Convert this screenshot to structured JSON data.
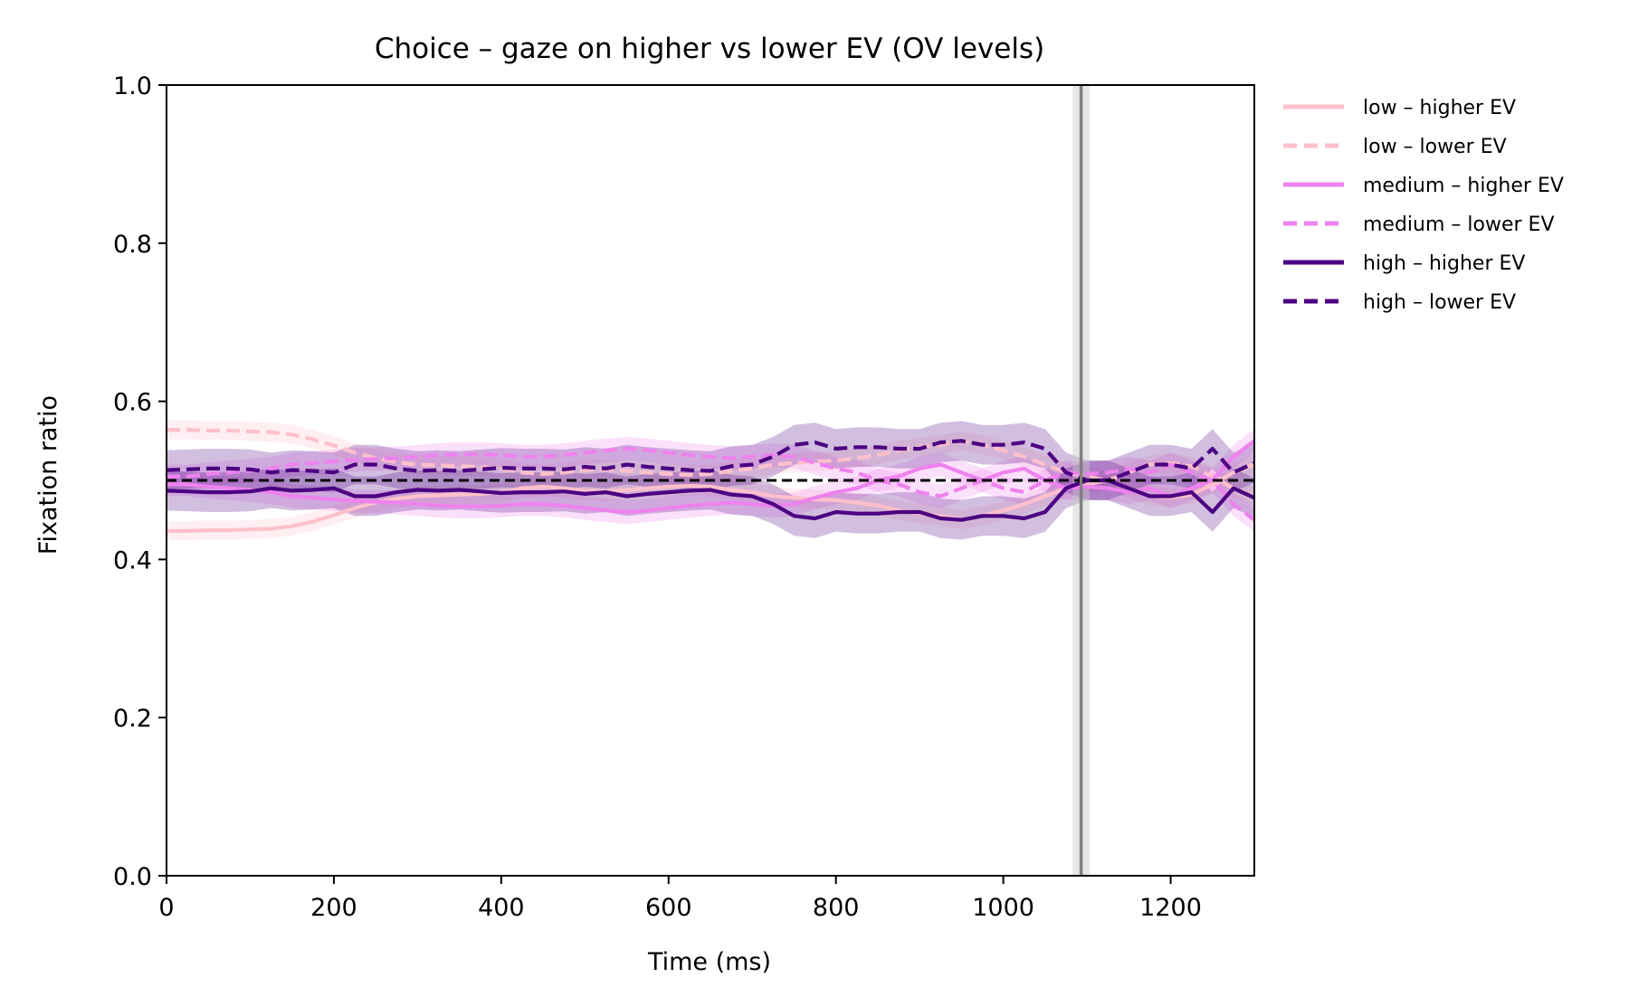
{
  "chart_data": {
    "type": "line",
    "title": "Choice – gaze on higher vs lower EV (OV levels)",
    "xlabel": "Time (ms)",
    "ylabel": "Fixation ratio",
    "xlim": [
      0,
      1300
    ],
    "ylim": [
      0,
      1
    ],
    "xticks": [
      0,
      200,
      400,
      600,
      800,
      1000,
      1200
    ],
    "xtick_labels": [
      "0",
      "200",
      "400",
      "600",
      "800",
      "1000",
      "1200"
    ],
    "yticks": [
      0,
      0.2,
      0.4,
      0.6,
      0.8,
      1.0
    ],
    "ytick_labels": [
      "0.0",
      "0.2",
      "0.4",
      "0.6",
      "0.8",
      "1.0"
    ],
    "grid": false,
    "legend_position": "outside-right-top",
    "reference_lines": {
      "horizontal_dashed_y": 0.5,
      "vertical_dashed_x": 0,
      "vertical_solid_x": 1093,
      "vertical_band": [
        1083,
        1103
      ]
    },
    "x": [
      0,
      25,
      50,
      75,
      100,
      125,
      150,
      175,
      200,
      225,
      250,
      275,
      300,
      325,
      350,
      375,
      400,
      425,
      450,
      475,
      500,
      525,
      550,
      575,
      600,
      625,
      650,
      675,
      700,
      725,
      750,
      775,
      800,
      825,
      850,
      875,
      900,
      925,
      950,
      975,
      1000,
      1025,
      1050,
      1075,
      1100,
      1125,
      1150,
      1175,
      1200,
      1225,
      1250,
      1275,
      1300
    ],
    "series": [
      {
        "name": "low – higher EV",
        "color": "#ffc0cb",
        "style": "solid",
        "values": [
          0.436,
          0.436,
          0.437,
          0.437,
          0.438,
          0.439,
          0.442,
          0.448,
          0.456,
          0.465,
          0.472,
          0.477,
          0.48,
          0.481,
          0.482,
          0.483,
          0.485,
          0.49,
          0.492,
          0.49,
          0.487,
          0.486,
          0.488,
          0.49,
          0.492,
          0.493,
          0.492,
          0.488,
          0.485,
          0.48,
          0.478,
          0.476,
          0.475,
          0.472,
          0.468,
          0.462,
          0.458,
          0.455,
          0.45,
          0.455,
          0.462,
          0.47,
          0.48,
          0.49,
          0.495,
          0.5,
          0.49,
          0.48,
          0.478,
          0.482,
          0.495,
          0.51,
          0.52
        ],
        "band": 0.012
      },
      {
        "name": "low – lower EV",
        "color": "#ffc0cb",
        "style": "dashed",
        "values": [
          0.564,
          0.564,
          0.563,
          0.563,
          0.562,
          0.561,
          0.558,
          0.552,
          0.544,
          0.535,
          0.528,
          0.523,
          0.52,
          0.519,
          0.518,
          0.517,
          0.515,
          0.51,
          0.508,
          0.51,
          0.513,
          0.514,
          0.512,
          0.51,
          0.508,
          0.507,
          0.508,
          0.512,
          0.515,
          0.52,
          0.522,
          0.524,
          0.525,
          0.528,
          0.532,
          0.538,
          0.542,
          0.545,
          0.55,
          0.545,
          0.538,
          0.53,
          0.52,
          0.51,
          0.505,
          0.5,
          0.51,
          0.52,
          0.522,
          0.518,
          0.505,
          0.49,
          0.48
        ],
        "band": 0.012
      },
      {
        "name": "medium – higher EV",
        "color": "#ee82ee",
        "style": "solid",
        "values": [
          0.495,
          0.495,
          0.492,
          0.49,
          0.488,
          0.485,
          0.48,
          0.478,
          0.476,
          0.474,
          0.473,
          0.472,
          0.47,
          0.468,
          0.467,
          0.467,
          0.468,
          0.47,
          0.47,
          0.468,
          0.465,
          0.462,
          0.46,
          0.462,
          0.465,
          0.468,
          0.47,
          0.472,
          0.47,
          0.468,
          0.47,
          0.478,
          0.485,
          0.49,
          0.5,
          0.505,
          0.515,
          0.52,
          0.51,
          0.5,
          0.51,
          0.515,
          0.5,
          0.49,
          0.492,
          0.49,
          0.485,
          0.49,
          0.48,
          0.49,
          0.5,
          0.53,
          0.55
        ],
        "band": 0.015
      },
      {
        "name": "medium – lower EV",
        "color": "#ee82ee",
        "style": "dashed",
        "values": [
          0.505,
          0.505,
          0.508,
          0.51,
          0.512,
          0.515,
          0.52,
          0.522,
          0.524,
          0.526,
          0.527,
          0.528,
          0.53,
          0.532,
          0.533,
          0.533,
          0.532,
          0.53,
          0.53,
          0.532,
          0.535,
          0.538,
          0.54,
          0.538,
          0.535,
          0.532,
          0.53,
          0.528,
          0.53,
          0.532,
          0.53,
          0.522,
          0.515,
          0.51,
          0.5,
          0.495,
          0.485,
          0.48,
          0.49,
          0.5,
          0.49,
          0.485,
          0.5,
          0.51,
          0.508,
          0.51,
          0.515,
          0.51,
          0.52,
          0.51,
          0.5,
          0.47,
          0.45
        ],
        "band": 0.015
      },
      {
        "name": "high – higher EV",
        "color": "#4b0082",
        "style": "solid",
        "values": [
          0.487,
          0.486,
          0.485,
          0.485,
          0.486,
          0.49,
          0.487,
          0.488,
          0.49,
          0.48,
          0.48,
          0.485,
          0.488,
          0.487,
          0.488,
          0.486,
          0.484,
          0.485,
          0.485,
          0.486,
          0.483,
          0.485,
          0.48,
          0.483,
          0.485,
          0.487,
          0.488,
          0.482,
          0.48,
          0.47,
          0.455,
          0.452,
          0.46,
          0.458,
          0.458,
          0.46,
          0.46,
          0.452,
          0.45,
          0.455,
          0.455,
          0.452,
          0.46,
          0.49,
          0.5,
          0.5,
          0.49,
          0.48,
          0.48,
          0.485,
          0.46,
          0.49,
          0.478
        ],
        "band": 0.025
      },
      {
        "name": "high – lower EV",
        "color": "#4b0082",
        "style": "dashed",
        "values": [
          0.513,
          0.514,
          0.515,
          0.515,
          0.514,
          0.51,
          0.513,
          0.512,
          0.51,
          0.52,
          0.52,
          0.515,
          0.512,
          0.513,
          0.512,
          0.514,
          0.516,
          0.515,
          0.515,
          0.514,
          0.517,
          0.515,
          0.52,
          0.517,
          0.515,
          0.513,
          0.512,
          0.518,
          0.52,
          0.53,
          0.545,
          0.548,
          0.54,
          0.542,
          0.542,
          0.54,
          0.54,
          0.548,
          0.55,
          0.545,
          0.545,
          0.548,
          0.54,
          0.51,
          0.5,
          0.5,
          0.51,
          0.52,
          0.52,
          0.515,
          0.54,
          0.51,
          0.522
        ],
        "band": 0.025
      }
    ]
  }
}
